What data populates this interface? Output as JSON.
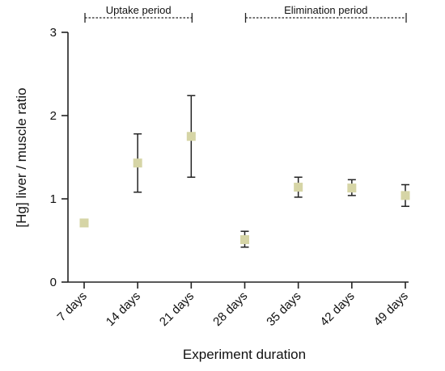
{
  "chart_data": {
    "type": "scatter",
    "xlabel": "Experiment duration",
    "ylabel": "[Hg] liver / muscle ratio",
    "ylim": [
      0,
      3
    ],
    "yticks": [
      0,
      1,
      2,
      3
    ],
    "grid": false,
    "legend": "none",
    "categories": [
      "7 days",
      "14 days",
      "21 days",
      "28 days",
      "35 days",
      "42 days",
      "49 days"
    ],
    "series": [
      {
        "marker": "square",
        "color": "#d6d5a6",
        "values": [
          0.71,
          1.43,
          1.75,
          0.51,
          1.14,
          1.13,
          1.04
        ],
        "error_low": [
          null,
          1.08,
          1.26,
          0.42,
          1.02,
          1.04,
          0.91
        ],
        "error_high": [
          null,
          1.78,
          2.24,
          0.61,
          1.26,
          1.23,
          1.17
        ]
      }
    ],
    "annotations": [
      {
        "label": "Uptake period",
        "from": "7 days",
        "to": "21 days",
        "style": "dashed-bracket"
      },
      {
        "label": "Elimination period",
        "from": "28 days",
        "to": "49 days",
        "style": "dashed-bracket"
      }
    ]
  }
}
